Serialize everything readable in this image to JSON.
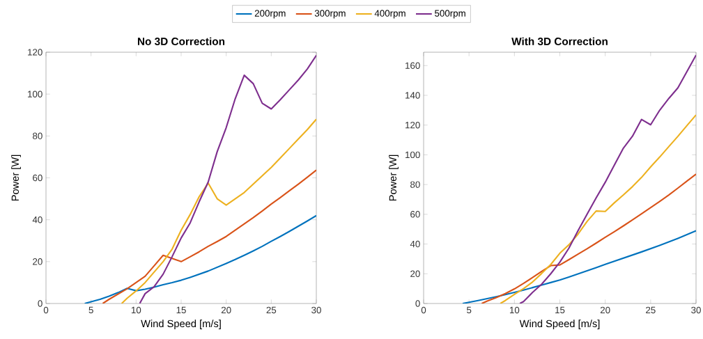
{
  "chart_data": [
    {
      "type": "line",
      "title": "No 3D Correction",
      "xlabel": "Wind Speed [m/s]",
      "ylabel": "Power [W]",
      "xlim": [
        0,
        30
      ],
      "ylim": [
        0,
        120
      ],
      "xticks": [
        0,
        5,
        10,
        15,
        20,
        25,
        30
      ],
      "yticks": [
        0,
        20,
        40,
        60,
        80,
        100,
        120
      ],
      "legend": "top",
      "series": [
        {
          "name": "200rpm",
          "color": "#0072bd",
          "x": [
            4.3,
            5,
            6,
            7,
            8,
            9,
            10,
            11,
            12,
            13,
            14,
            15,
            16,
            17,
            18,
            19,
            20,
            21,
            22,
            23,
            24,
            25,
            26,
            27,
            28,
            29,
            30
          ],
          "values": [
            0,
            0.8,
            2,
            3.5,
            5.2,
            7.2,
            6.1,
            6.8,
            7.8,
            9,
            10,
            11.1,
            12.5,
            14,
            15.5,
            17.3,
            19.1,
            21,
            23,
            25.1,
            27.3,
            29.7,
            32,
            34.4,
            36.9,
            39.4,
            42
          ]
        },
        {
          "name": "300rpm",
          "color": "#d95319",
          "x": [
            6.3,
            7,
            8,
            9,
            10,
            11,
            12,
            13,
            14,
            15,
            16,
            17,
            18,
            19,
            20,
            21,
            22,
            23,
            24,
            25,
            26,
            27,
            28,
            29,
            30
          ],
          "values": [
            0,
            2,
            4.5,
            7,
            10,
            13,
            18,
            23,
            21.5,
            20,
            22.3,
            24.7,
            27.3,
            29.6,
            32,
            35,
            38,
            41,
            44.2,
            47.5,
            50.6,
            53.8,
            57,
            60.3,
            63.7
          ]
        },
        {
          "name": "400rpm",
          "color": "#edb120",
          "x": [
            8.4,
            9,
            10,
            11,
            12,
            13,
            14,
            15,
            16,
            17,
            18,
            19,
            20,
            21,
            22,
            23,
            24,
            25,
            26,
            27,
            28,
            29,
            30
          ],
          "values": [
            0,
            2.5,
            6,
            10,
            15,
            20,
            26,
            35,
            42.5,
            51,
            57.5,
            50,
            47,
            50,
            53,
            57,
            61,
            65,
            69.5,
            74,
            78.5,
            83,
            88
          ]
        },
        {
          "name": "500rpm",
          "color": "#7e2f8e",
          "x": [
            10.4,
            11,
            12,
            13,
            14,
            15,
            16,
            17,
            18,
            19,
            20,
            21,
            22,
            23,
            24,
            25,
            26,
            27,
            28,
            29,
            30
          ],
          "values": [
            0,
            4.7,
            8,
            14,
            22.4,
            31.3,
            38.5,
            48.6,
            58,
            72.5,
            84,
            97.8,
            109,
            105,
            95.6,
            92.9,
            97.3,
            102,
            106.7,
            112,
            118.5
          ]
        }
      ]
    },
    {
      "type": "line",
      "title": "With 3D Correction",
      "xlabel": "Wind Speed [m/s]",
      "ylabel": "Power [W]",
      "xlim": [
        0,
        30
      ],
      "ylim": [
        0,
        169
      ],
      "xticks": [
        0,
        5,
        10,
        15,
        20,
        25,
        30
      ],
      "yticks": [
        0,
        20,
        40,
        60,
        80,
        100,
        120,
        140,
        160
      ],
      "series": [
        {
          "color": "#0072bd",
          "x": [
            4.3,
            5,
            6,
            7,
            8,
            9,
            10,
            11,
            12,
            13,
            14,
            15,
            16,
            17,
            18,
            19,
            20,
            21,
            22,
            23,
            24,
            25,
            26,
            27,
            28,
            29,
            30
          ],
          "values": [
            0,
            0.8,
            2,
            3.3,
            4.6,
            6,
            7.5,
            9,
            10.7,
            12.4,
            14.1,
            15.8,
            17.8,
            19.9,
            22,
            24.1,
            26.3,
            28.4,
            30.5,
            32.6,
            34.7,
            36.9,
            39.1,
            41.4,
            43.8,
            46.3,
            48.9
          ]
        },
        {
          "color": "#d95319",
          "x": [
            6.4,
            7,
            8,
            9,
            10,
            11,
            12,
            13,
            14,
            15,
            16,
            17,
            18,
            19,
            20,
            21,
            22,
            23,
            24,
            25,
            26,
            27,
            28,
            29,
            30
          ],
          "values": [
            0,
            1.6,
            4,
            6.7,
            9.8,
            13.5,
            17.5,
            21.6,
            25.5,
            25.9,
            29.5,
            33.2,
            36.8,
            40.6,
            44.5,
            48.3,
            52.2,
            56.2,
            60.3,
            64.5,
            68.7,
            73,
            77.6,
            82.3,
            87
          ]
        },
        {
          "color": "#edb120",
          "x": [
            8.45,
            9,
            10,
            11,
            12,
            13,
            14,
            15,
            16,
            17,
            18,
            19,
            20,
            21,
            22,
            23,
            24,
            25,
            26,
            27,
            28,
            29,
            30
          ],
          "values": [
            0,
            2,
            6.2,
            10,
            14.5,
            20.2,
            26.2,
            33.8,
            39.5,
            46.6,
            55.2,
            62.2,
            61.9,
            67.7,
            73,
            78.6,
            84.8,
            91.9,
            98.5,
            105.5,
            112.4,
            119.7,
            126.8
          ]
        },
        {
          "color": "#7e2f8e",
          "x": [
            10.6,
            11,
            12,
            13,
            14,
            15,
            16,
            17,
            18,
            19,
            20,
            21,
            22,
            23,
            24,
            25,
            26,
            27,
            28,
            29,
            30
          ],
          "values": [
            0,
            1.3,
            7.5,
            13,
            20,
            27.8,
            37.2,
            48.9,
            60,
            71,
            81.5,
            93,
            104.5,
            112.5,
            123.8,
            120.2,
            130,
            137.9,
            145,
            156,
            167
          ]
        }
      ]
    }
  ]
}
